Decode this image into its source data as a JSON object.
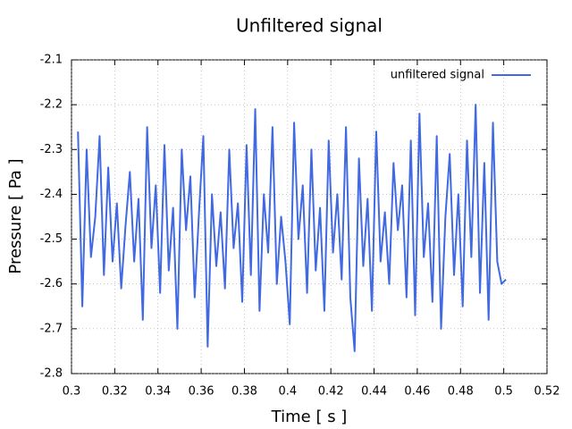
{
  "chart_data": {
    "type": "line",
    "title": "Unfiltered signal",
    "x_label": "Time [ s ]",
    "y_label": "Pressure [ Pa ]",
    "x": [
      0.303,
      0.305,
      0.307,
      0.309,
      0.311,
      0.313,
      0.315,
      0.317,
      0.319,
      0.321,
      0.323,
      0.325,
      0.327,
      0.329,
      0.331,
      0.333,
      0.335,
      0.337,
      0.339,
      0.341,
      0.343,
      0.345,
      0.347,
      0.349,
      0.351,
      0.353,
      0.355,
      0.357,
      0.359,
      0.361,
      0.363,
      0.365,
      0.367,
      0.369,
      0.371,
      0.373,
      0.375,
      0.377,
      0.379,
      0.381,
      0.383,
      0.385,
      0.387,
      0.389,
      0.391,
      0.393,
      0.395,
      0.397,
      0.399,
      0.401,
      0.403,
      0.405,
      0.407,
      0.409,
      0.411,
      0.413,
      0.415,
      0.417,
      0.419,
      0.421,
      0.423,
      0.425,
      0.427,
      0.429,
      0.431,
      0.433,
      0.435,
      0.437,
      0.439,
      0.441,
      0.443,
      0.445,
      0.447,
      0.449,
      0.451,
      0.453,
      0.455,
      0.457,
      0.459,
      0.461,
      0.463,
      0.465,
      0.467,
      0.469,
      0.471,
      0.473,
      0.475,
      0.477,
      0.479,
      0.481,
      0.483,
      0.485,
      0.487,
      0.489,
      0.491,
      0.493,
      0.495,
      0.497,
      0.499,
      0.501
    ],
    "series": [
      {
        "name": "unfiltered signal",
        "color": "#4169e1",
        "values": [
          -2.26,
          -2.65,
          -2.3,
          -2.54,
          -2.45,
          -2.27,
          -2.58,
          -2.34,
          -2.55,
          -2.42,
          -2.61,
          -2.47,
          -2.35,
          -2.55,
          -2.41,
          -2.68,
          -2.25,
          -2.52,
          -2.38,
          -2.62,
          -2.29,
          -2.57,
          -2.43,
          -2.7,
          -2.3,
          -2.48,
          -2.36,
          -2.63,
          -2.44,
          -2.27,
          -2.74,
          -2.4,
          -2.56,
          -2.44,
          -2.61,
          -2.3,
          -2.52,
          -2.42,
          -2.64,
          -2.29,
          -2.58,
          -2.21,
          -2.66,
          -2.4,
          -2.53,
          -2.25,
          -2.6,
          -2.45,
          -2.55,
          -2.69,
          -2.24,
          -2.5,
          -2.38,
          -2.62,
          -2.3,
          -2.57,
          -2.43,
          -2.66,
          -2.28,
          -2.53,
          -2.4,
          -2.59,
          -2.25,
          -2.63,
          -2.75,
          -2.32,
          -2.56,
          -2.41,
          -2.66,
          -2.26,
          -2.55,
          -2.44,
          -2.6,
          -2.33,
          -2.48,
          -2.38,
          -2.63,
          -2.28,
          -2.67,
          -2.22,
          -2.54,
          -2.42,
          -2.64,
          -2.27,
          -2.7,
          -2.45,
          -2.31,
          -2.58,
          -2.4,
          -2.65,
          -2.28,
          -2.54,
          -2.2,
          -2.62,
          -2.33,
          -2.68,
          -2.24,
          -2.55,
          -2.6,
          -2.59
        ]
      }
    ],
    "xlim": [
      0.3,
      0.52
    ],
    "ylim": [
      -2.8,
      -2.1
    ],
    "xticks": [
      0.3,
      0.32,
      0.34,
      0.36,
      0.38,
      0.4,
      0.42,
      0.44,
      0.46,
      0.48,
      0.5,
      0.52
    ],
    "yticks": [
      -2.8,
      -2.7,
      -2.6,
      -2.5,
      -2.4,
      -2.3,
      -2.2,
      -2.1
    ],
    "grid": true,
    "legend": "upper right"
  }
}
